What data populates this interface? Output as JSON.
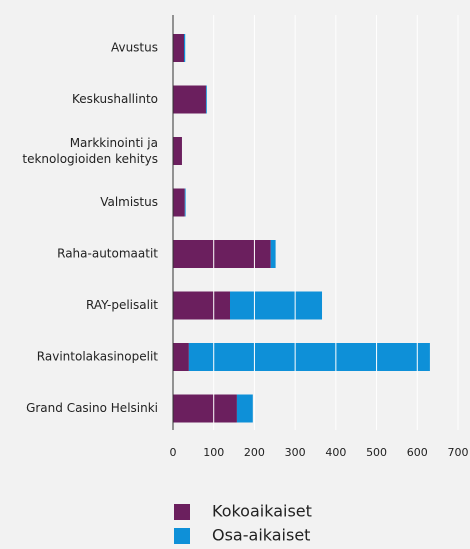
{
  "chart_data": {
    "type": "stacked-barh",
    "categories": [
      "Avustus",
      "Keskushallinto",
      "Markkinointi ja\nteknologioiden kehitys",
      "Valmistus",
      "Raha-automaatit",
      "RAY-pelisalit",
      "Ravintolakasinopelit",
      "Grand Casino Helsinki"
    ],
    "series": [
      {
        "name": "Kokoaikaiset",
        "color": "#6b1f5e",
        "values": [
          27,
          81,
          22,
          29,
          240,
          140,
          39,
          157
        ]
      },
      {
        "name": "Osa-aikaiset",
        "color": "#0e90d8",
        "values": [
          3,
          2,
          0,
          2,
          12,
          226,
          592,
          39
        ]
      }
    ],
    "xlim": [
      0,
      700
    ],
    "xticks": [
      0,
      100,
      200,
      300,
      400,
      500,
      600,
      700
    ],
    "grid": true
  }
}
